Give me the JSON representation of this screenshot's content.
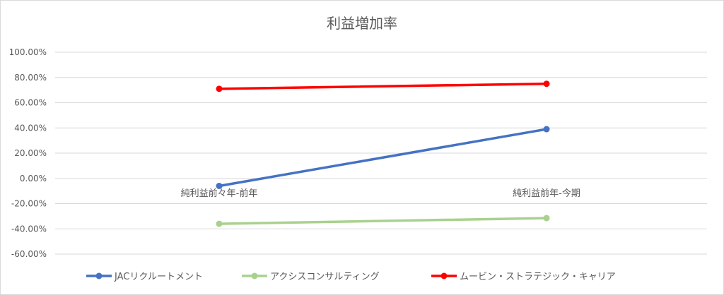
{
  "chart_data": {
    "type": "line",
    "title": "利益増加率",
    "categories": [
      "純利益前々年-前年",
      "純利益前年-今期"
    ],
    "ylim": [
      -60,
      100
    ],
    "yticks": [
      -60,
      -40,
      -20,
      0,
      20,
      40,
      60,
      80,
      100
    ],
    "ytick_labels": [
      "-60.00%",
      "-40.00%",
      "-20.00%",
      "0.00%",
      "20.00%",
      "40.00%",
      "60.00%",
      "80.00%",
      "100.00%"
    ],
    "grid": true,
    "legend_position": "bottom",
    "series": [
      {
        "name": "JACリクルートメント",
        "color": "#4472c4",
        "values": [
          -6,
          39
        ]
      },
      {
        "name": "アクシスコンサルティング",
        "color": "#a9d18e",
        "values": [
          -36,
          -31.5
        ]
      },
      {
        "name": "ムービン・ストラテジック・キャリア",
        "color": "#ff0000",
        "values": [
          71,
          75
        ]
      }
    ]
  }
}
